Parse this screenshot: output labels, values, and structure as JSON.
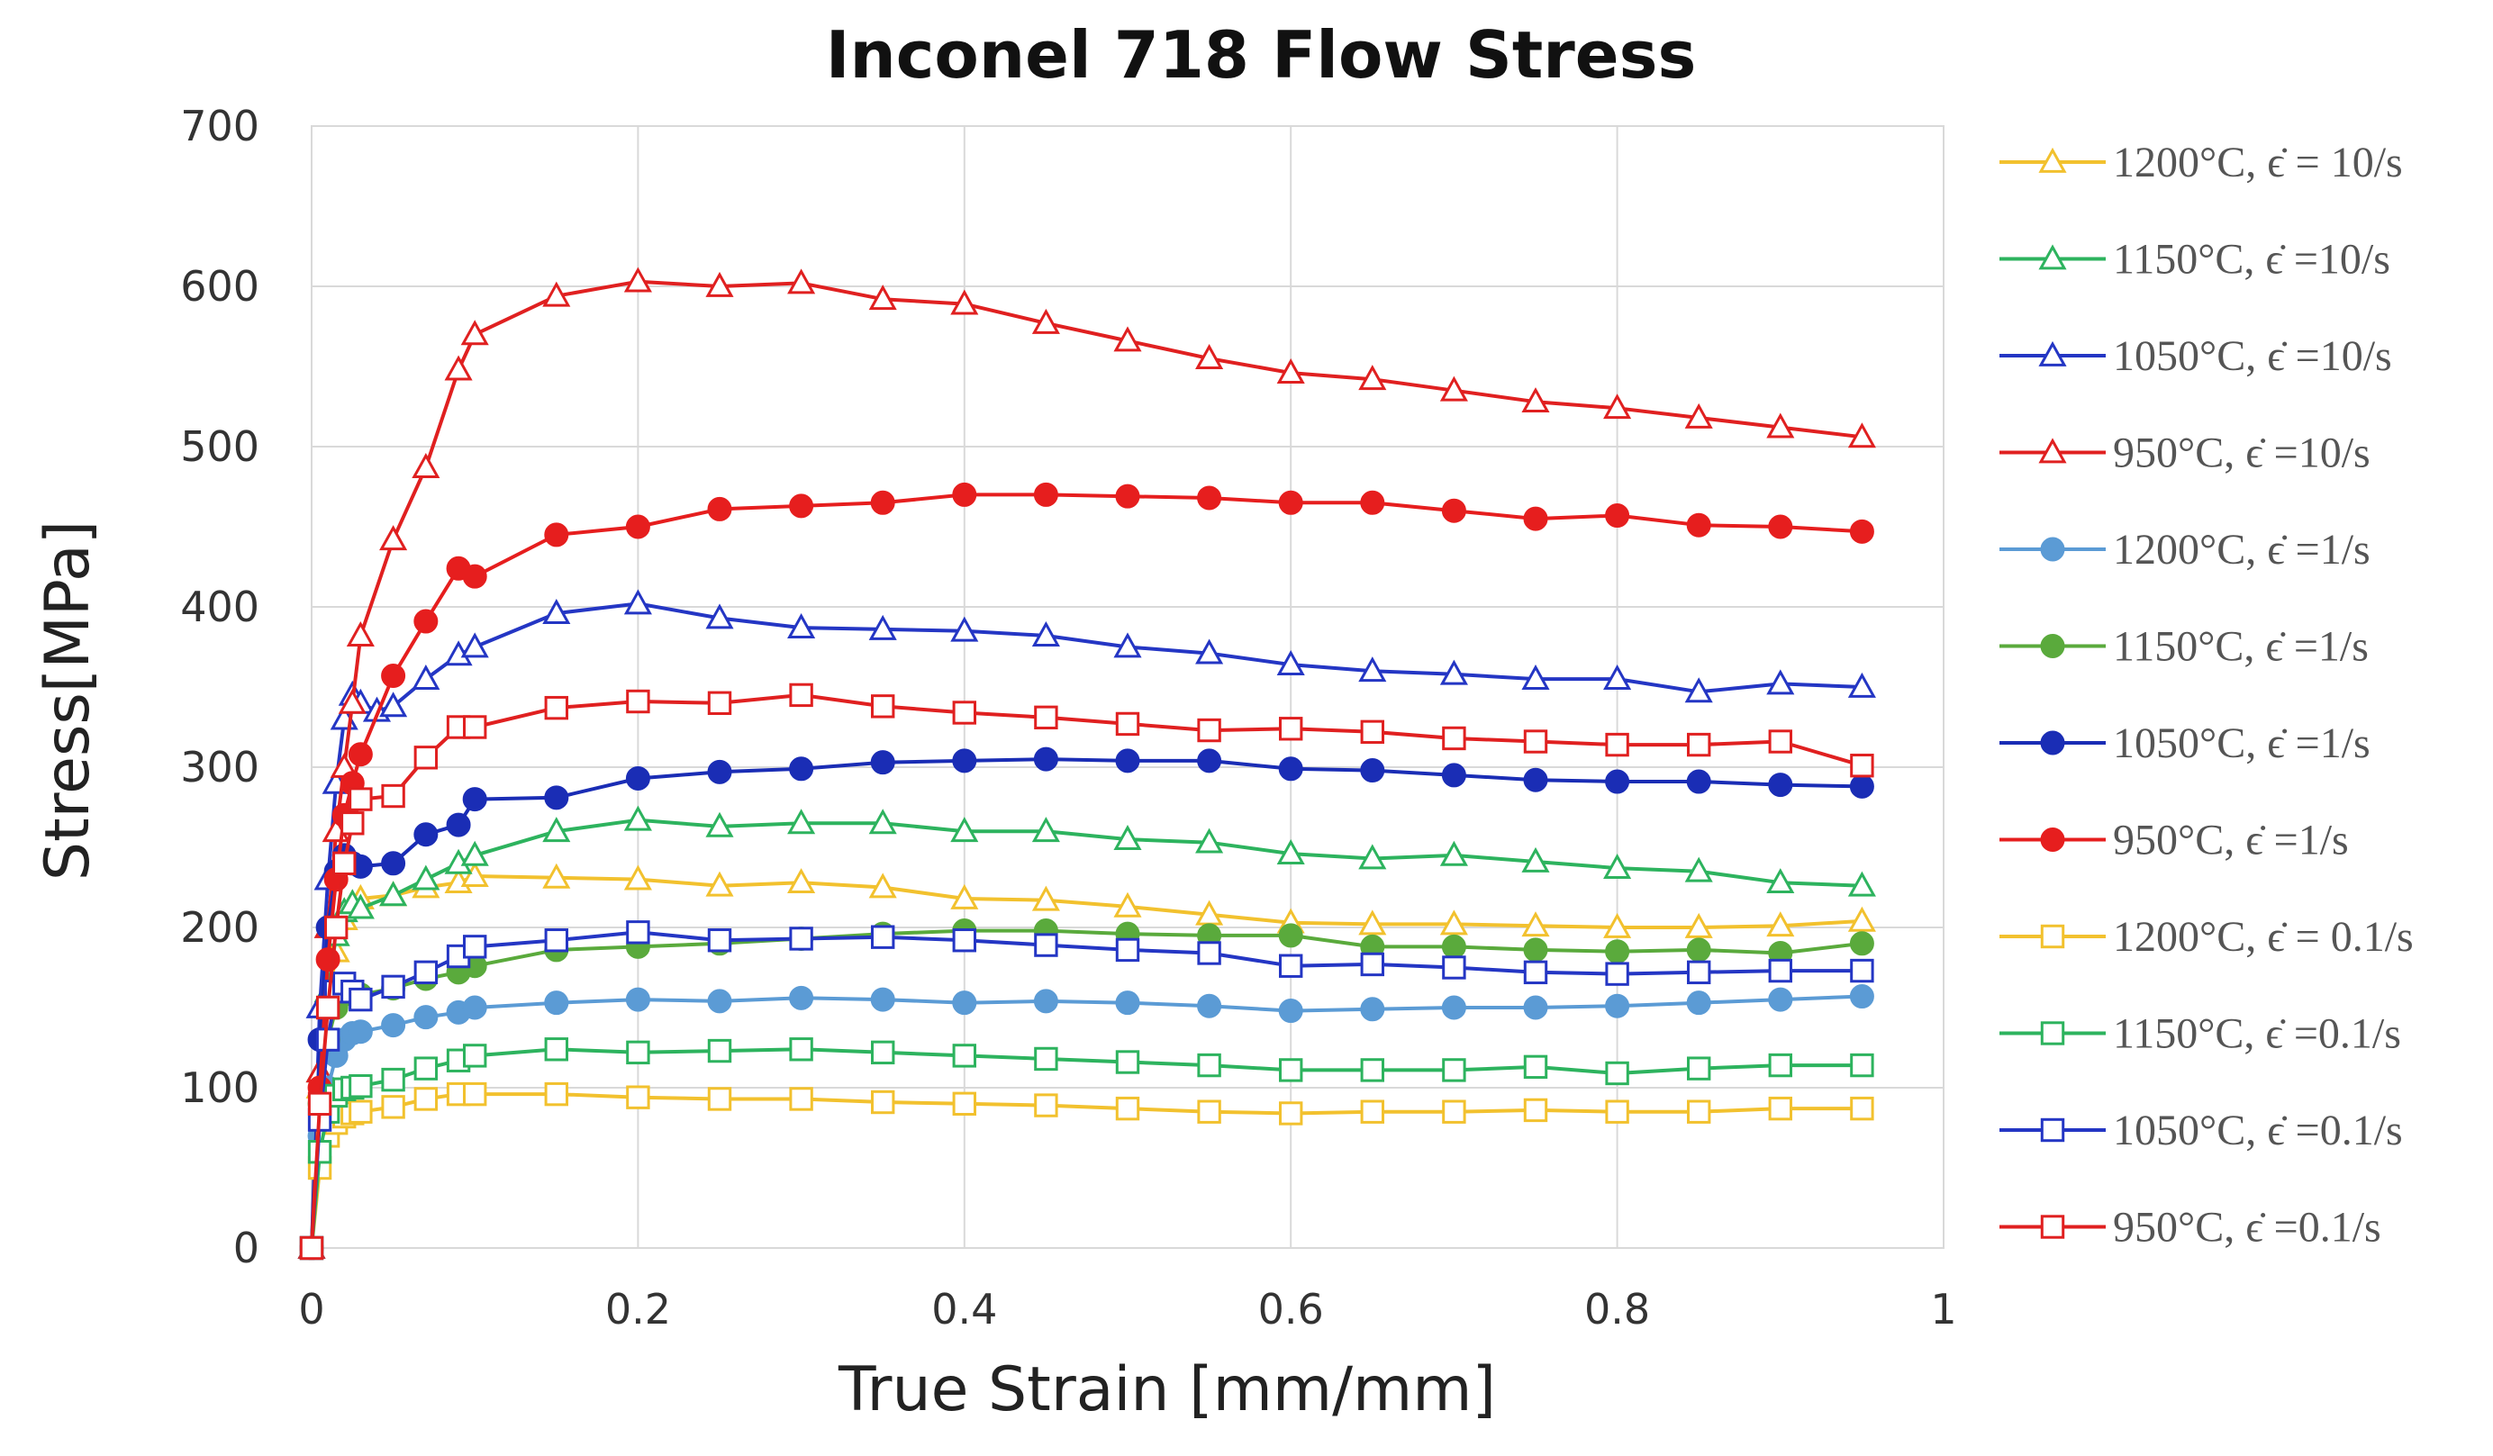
{
  "chart_data": {
    "type": "line",
    "title": "Inconel 718 Flow Stress",
    "xlabel": "True Strain [mm/mm]",
    "ylabel": "Stress[MPa]",
    "xlim": [
      0,
      1
    ],
    "ylim": [
      0,
      700
    ],
    "x_ticks": [
      0,
      0.2,
      0.4,
      0.6,
      0.8,
      1
    ],
    "x_tick_labels": [
      "0",
      "0.2",
      "0.4",
      "0.6",
      "0.8",
      "1"
    ],
    "y_ticks": [
      0,
      100,
      200,
      300,
      400,
      500,
      600,
      700
    ],
    "y_tick_labels": [
      "0",
      "100",
      "200",
      "300",
      "400",
      "500",
      "600",
      "700"
    ],
    "grid": true,
    "legend_position": "right",
    "series": [
      {
        "name": "1200°C, ϵ̇ = 10/s",
        "color": "#f2c12e",
        "marker": "triangle-open",
        "x": [
          0,
          0.005,
          0.01,
          0.015,
          0.02,
          0.025,
          0.03,
          0.05,
          0.07,
          0.09,
          0.1,
          0.15,
          0.2,
          0.25,
          0.3,
          0.35,
          0.4,
          0.45,
          0.5,
          0.55,
          0.6,
          0.65,
          0.7,
          0.75,
          0.8,
          0.85,
          0.9,
          0.95
        ],
        "y": [
          0,
          100,
          150,
          185,
          205,
          215,
          218,
          220,
          225,
          228,
          232,
          231,
          230,
          226,
          228,
          225,
          218,
          217,
          213,
          208,
          203,
          202,
          202,
          201,
          200,
          200,
          201,
          204
        ]
      },
      {
        "name": "1150°C, ϵ̇ =10/s",
        "color": "#2db35e",
        "marker": "triangle-open",
        "x": [
          0,
          0.005,
          0.01,
          0.015,
          0.02,
          0.025,
          0.03,
          0.05,
          0.07,
          0.09,
          0.1,
          0.15,
          0.2,
          0.25,
          0.3,
          0.35,
          0.4,
          0.45,
          0.5,
          0.55,
          0.6,
          0.65,
          0.7,
          0.75,
          0.8,
          0.85,
          0.9,
          0.95
        ],
        "y": [
          0,
          110,
          160,
          195,
          210,
          215,
          212,
          220,
          230,
          240,
          245,
          260,
          267,
          263,
          265,
          265,
          260,
          260,
          255,
          253,
          246,
          243,
          245,
          241,
          237,
          235,
          228,
          226
        ]
      },
      {
        "name": "1050°C, ϵ̇ =10/s",
        "color": "#2436c4",
        "marker": "triangle-open",
        "x": [
          0,
          0.005,
          0.01,
          0.015,
          0.02,
          0.025,
          0.03,
          0.04,
          0.05,
          0.07,
          0.09,
          0.1,
          0.15,
          0.2,
          0.25,
          0.3,
          0.35,
          0.4,
          0.45,
          0.5,
          0.55,
          0.6,
          0.65,
          0.7,
          0.75,
          0.8,
          0.85,
          0.9,
          0.95
        ],
        "y": [
          0,
          150,
          230,
          290,
          330,
          345,
          340,
          335,
          338,
          355,
          370,
          375,
          396,
          402,
          393,
          387,
          386,
          385,
          382,
          375,
          371,
          364,
          360,
          358,
          355,
          355,
          347,
          352,
          350
        ]
      },
      {
        "name": "950°C, ϵ̇ =10/s",
        "color": "#e02020",
        "marker": "triangle-open",
        "x": [
          0,
          0.005,
          0.01,
          0.015,
          0.02,
          0.025,
          0.03,
          0.05,
          0.07,
          0.09,
          0.1,
          0.15,
          0.2,
          0.25,
          0.3,
          0.35,
          0.4,
          0.45,
          0.5,
          0.55,
          0.6,
          0.65,
          0.7,
          0.75,
          0.8,
          0.85,
          0.9,
          0.95
        ],
        "y": [
          0,
          110,
          200,
          260,
          300,
          340,
          382,
          442,
          487,
          548,
          570,
          594,
          603,
          600,
          602,
          592,
          589,
          577,
          566,
          555,
          546,
          542,
          535,
          528,
          524,
          518,
          512,
          506
        ]
      },
      {
        "name": "1200°C, ϵ̇ =1/s",
        "color": "#5b9bd5",
        "marker": "circle-filled",
        "x": [
          0,
          0.005,
          0.01,
          0.015,
          0.02,
          0.025,
          0.03,
          0.05,
          0.07,
          0.09,
          0.1,
          0.15,
          0.2,
          0.25,
          0.3,
          0.35,
          0.4,
          0.45,
          0.5,
          0.55,
          0.6,
          0.65,
          0.7,
          0.75,
          0.8,
          0.85,
          0.9,
          0.95
        ],
        "y": [
          0,
          70,
          100,
          120,
          130,
          134,
          135,
          139,
          144,
          147,
          150,
          153,
          155,
          154,
          156,
          155,
          153,
          154,
          153,
          151,
          148,
          149,
          150,
          150,
          151,
          153,
          155,
          157
        ]
      },
      {
        "name": "1150°C, ϵ̇ =1/s",
        "color": "#5aaa3c",
        "marker": "circle-filled",
        "x": [
          0,
          0.005,
          0.01,
          0.015,
          0.02,
          0.025,
          0.03,
          0.05,
          0.07,
          0.09,
          0.1,
          0.15,
          0.2,
          0.25,
          0.3,
          0.35,
          0.4,
          0.45,
          0.5,
          0.55,
          0.6,
          0.65,
          0.7,
          0.75,
          0.8,
          0.85,
          0.9,
          0.95
        ],
        "y": [
          0,
          90,
          130,
          150,
          158,
          160,
          158,
          162,
          168,
          172,
          176,
          186,
          188,
          190,
          193,
          196,
          198,
          198,
          196,
          195,
          195,
          188,
          188,
          186,
          185,
          186,
          184,
          190
        ]
      },
      {
        "name": "1050°C, ϵ̇ =1/s",
        "color": "#1a2db5",
        "marker": "circle-filled",
        "x": [
          0,
          0.005,
          0.01,
          0.015,
          0.02,
          0.025,
          0.03,
          0.05,
          0.07,
          0.09,
          0.1,
          0.15,
          0.2,
          0.25,
          0.3,
          0.35,
          0.4,
          0.45,
          0.5,
          0.55,
          0.6,
          0.65,
          0.7,
          0.75,
          0.8,
          0.85,
          0.9,
          0.95
        ],
        "y": [
          0,
          130,
          200,
          235,
          245,
          240,
          238,
          240,
          258,
          264,
          280,
          281,
          293,
          297,
          299,
          303,
          304,
          305,
          304,
          304,
          299,
          298,
          295,
          292,
          291,
          291,
          289,
          288
        ]
      },
      {
        "name": "950°C, ϵ̇ =1/s",
        "color": "#e61e1e",
        "marker": "circle-filled",
        "x": [
          0,
          0.005,
          0.01,
          0.015,
          0.02,
          0.025,
          0.03,
          0.05,
          0.07,
          0.09,
          0.1,
          0.15,
          0.2,
          0.25,
          0.3,
          0.35,
          0.4,
          0.45,
          0.5,
          0.55,
          0.6,
          0.65,
          0.7,
          0.75,
          0.8,
          0.85,
          0.9,
          0.95
        ],
        "y": [
          0,
          100,
          180,
          230,
          270,
          290,
          308,
          357,
          391,
          424,
          419,
          445,
          450,
          461,
          463,
          465,
          470,
          470,
          469,
          468,
          465,
          465,
          460,
          455,
          457,
          451,
          450,
          447
        ]
      },
      {
        "name": "1200°C, ϵ̇ = 0.1/s",
        "color": "#f2c12e",
        "marker": "square-open",
        "x": [
          0,
          0.005,
          0.01,
          0.015,
          0.02,
          0.025,
          0.03,
          0.05,
          0.07,
          0.09,
          0.1,
          0.15,
          0.2,
          0.25,
          0.3,
          0.35,
          0.4,
          0.45,
          0.5,
          0.55,
          0.6,
          0.65,
          0.7,
          0.75,
          0.8,
          0.85,
          0.9,
          0.95
        ],
        "y": [
          0,
          50,
          70,
          78,
          82,
          84,
          85,
          88,
          93,
          96,
          96,
          96,
          94,
          93,
          93,
          91,
          90,
          89,
          87,
          85,
          84,
          85,
          85,
          86,
          85,
          85,
          87,
          87
        ]
      },
      {
        "name": "1150°C,  ϵ̇ =0.1/s",
        "color": "#2db35e",
        "marker": "square-open",
        "x": [
          0,
          0.005,
          0.01,
          0.015,
          0.02,
          0.025,
          0.03,
          0.05,
          0.07,
          0.09,
          0.1,
          0.15,
          0.2,
          0.25,
          0.3,
          0.35,
          0.4,
          0.45,
          0.5,
          0.55,
          0.6,
          0.65,
          0.7,
          0.75,
          0.8,
          0.85,
          0.9,
          0.95
        ],
        "y": [
          0,
          60,
          85,
          95,
          99,
          100,
          101,
          105,
          112,
          117,
          120,
          124,
          122,
          123,
          124,
          122,
          120,
          118,
          116,
          114,
          111,
          111,
          111,
          113,
          109,
          112,
          114,
          114
        ]
      },
      {
        "name": "1050°C, ϵ̇ =0.1/s",
        "color": "#2436c4",
        "marker": "square-open",
        "x": [
          0,
          0.005,
          0.01,
          0.015,
          0.02,
          0.025,
          0.03,
          0.05,
          0.07,
          0.09,
          0.1,
          0.15,
          0.2,
          0.25,
          0.3,
          0.35,
          0.4,
          0.45,
          0.5,
          0.55,
          0.6,
          0.65,
          0.7,
          0.75,
          0.8,
          0.85,
          0.9,
          0.95
        ],
        "y": [
          0,
          80,
          130,
          160,
          165,
          160,
          155,
          163,
          172,
          182,
          188,
          192,
          197,
          192,
          193,
          194,
          192,
          189,
          186,
          184,
          176,
          177,
          175,
          172,
          171,
          172,
          173,
          173
        ]
      },
      {
        "name": "950°C, ϵ̇ =0.1/s",
        "color": "#e02020",
        "marker": "square-open",
        "x": [
          0,
          0.005,
          0.01,
          0.015,
          0.02,
          0.025,
          0.03,
          0.05,
          0.07,
          0.09,
          0.1,
          0.15,
          0.2,
          0.25,
          0.3,
          0.35,
          0.4,
          0.45,
          0.5,
          0.55,
          0.6,
          0.65,
          0.7,
          0.75,
          0.8,
          0.85,
          0.9,
          0.95
        ],
        "y": [
          0,
          90,
          150,
          200,
          240,
          265,
          280,
          282,
          306,
          325,
          325,
          337,
          341,
          340,
          345,
          338,
          334,
          331,
          327,
          323,
          324,
          322,
          318,
          316,
          314,
          314,
          316,
          301
        ]
      }
    ]
  }
}
